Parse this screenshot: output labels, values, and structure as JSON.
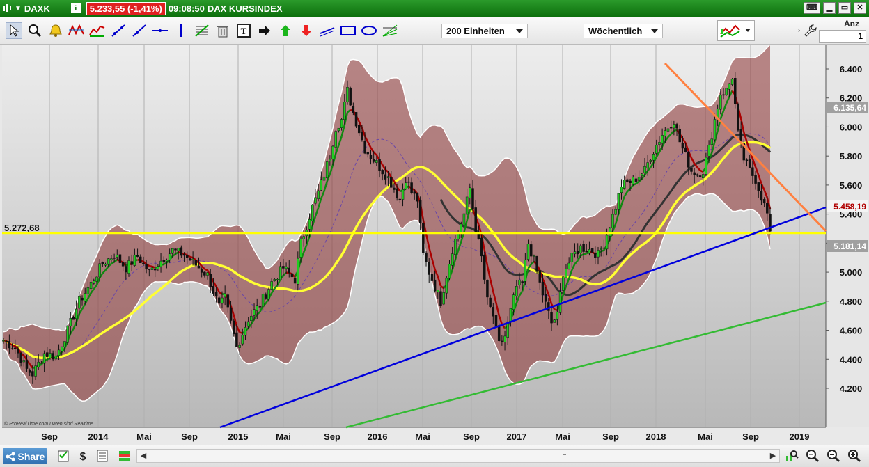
{
  "titlebar": {
    "symbol": "DAXK",
    "price_change": "5.233,55 (-1,41%)",
    "time": "09:08:50",
    "name": "DAX KURSINDEX",
    "info_icon": "i"
  },
  "toolbar": {
    "tools": [
      "pointer-icon",
      "zoom-icon",
      "alert-bell-icon",
      "pattern-icon",
      "channel-icon",
      "trendline-icon",
      "ray-icon",
      "horizontal-line-icon",
      "vertical-line-icon",
      "fibonacci-icon",
      "trash-icon",
      "text-icon",
      "arrow-right-icon",
      "arrow-up-icon",
      "arrow-down-icon",
      "segment-icon",
      "rectangle-icon",
      "ellipse-icon",
      "fan-icon"
    ],
    "units_dropdown": "200 Einheiten",
    "period_dropdown": "Wöchentlich",
    "anz_label": "Anz",
    "anz_value": "1"
  },
  "chart_data": {
    "type": "candlestick",
    "y_ticks": [
      "6.400",
      "6.200",
      "6.000",
      "5.800",
      "5.600",
      "5.400",
      "5.200",
      "5.000",
      "4.800",
      "4.600",
      "4.400",
      "4.200"
    ],
    "x_ticks": [
      "Sep",
      "2014",
      "Mai",
      "Sep",
      "2015",
      "Mai",
      "Sep",
      "2016",
      "Mai",
      "Sep",
      "2017",
      "Mai",
      "Sep",
      "2018",
      "Mai",
      "Sep",
      "2019"
    ],
    "horizontal_line_label": "5.272,68",
    "price_labels": {
      "upper_band": "6.135,64",
      "current": "5.458,19",
      "lower_band": "5.181,14"
    },
    "watermark": "© ProRealTime.com  Daten sind Realtime",
    "colors": {
      "up": "#22cc22",
      "down": "#111111",
      "band": "#8b2f2f",
      "sma_long": "#ffff33",
      "sma_mid": "#333333",
      "ema_fast_up": "#118811",
      "ema_fast_down": "#aa0000",
      "support_blue": "#0000dd",
      "support_green": "#33bb33",
      "resistance_orange": "#ff8040",
      "level_yellow": "#ffff00"
    }
  },
  "statusbar": {
    "share_label": "Share"
  }
}
